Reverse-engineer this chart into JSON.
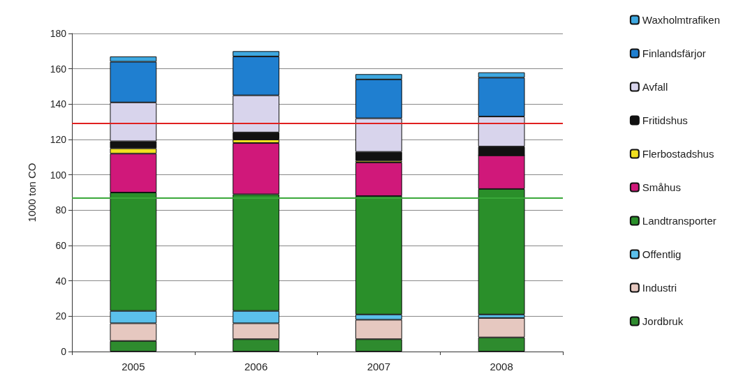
{
  "chart_data": {
    "type": "bar",
    "stacked": true,
    "ylabel": "1000 ton CO",
    "categories": [
      "2005",
      "2006",
      "2007",
      "2008"
    ],
    "series": [
      {
        "name": "Jordbruk",
        "color": "#2e8b2e",
        "values": [
          6,
          7,
          7,
          8
        ]
      },
      {
        "name": "Industri",
        "color": "#e6c8c0",
        "values": [
          10,
          9,
          11,
          11
        ]
      },
      {
        "name": "Offentlig",
        "color": "#5bc0eb",
        "values": [
          7,
          7,
          3,
          2
        ]
      },
      {
        "name": "Landtransporter",
        "color": "#2a8f2a",
        "values": [
          67,
          66,
          67,
          71
        ]
      },
      {
        "name": "Småhus",
        "color": "#d0187a",
        "values": [
          22,
          29,
          19,
          19
        ]
      },
      {
        "name": "Flerbostadshus",
        "color": "#f0e020",
        "values": [
          3,
          2,
          1,
          0
        ]
      },
      {
        "name": "Fritidshus",
        "color": "#111111",
        "values": [
          4,
          4,
          5,
          5
        ]
      },
      {
        "name": "Avfall",
        "color": "#d8d4ec",
        "values": [
          22,
          21,
          19,
          17
        ]
      },
      {
        "name": "Finlandsfärjor",
        "color": "#1f7fd0",
        "values": [
          23,
          22,
          22,
          22
        ]
      },
      {
        "name": "Waxholmtrafiken",
        "color": "#3ea8e0",
        "values": [
          3,
          3,
          3,
          3
        ]
      }
    ],
    "ylim": [
      0,
      180
    ],
    "yticks": [
      0,
      20,
      40,
      60,
      80,
      100,
      120,
      140,
      160,
      180
    ],
    "grid": "y",
    "legend": "right",
    "ref_lines": [
      {
        "axis": "y",
        "value": 129,
        "color": "#e02020"
      },
      {
        "axis": "y",
        "value": 87,
        "color": "#3aa83a"
      }
    ]
  }
}
